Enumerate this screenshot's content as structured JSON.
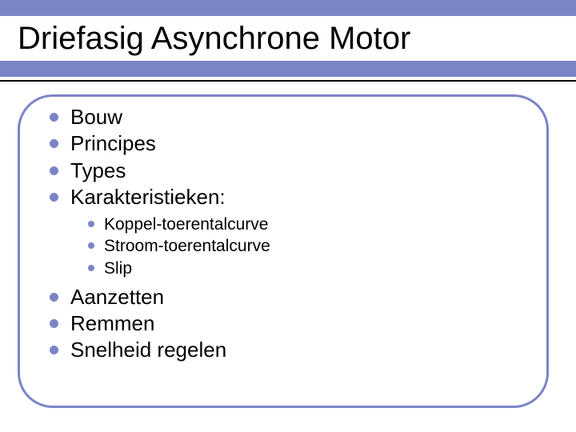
{
  "colors": {
    "accent": "#7b84c6",
    "text": "#000000",
    "background": "#ffffff",
    "underline_thin": "#000000"
  },
  "title": "Driefasig Asynchrone Motor",
  "bullets_top": [
    "Bouw",
    "Principes",
    "Types",
    "Karakteristieken:"
  ],
  "sub_bullets": [
    "Koppel-toerentalcurve",
    "Stroom-toerentalcurve",
    "Slip"
  ],
  "bullets_bottom": [
    "Aanzetten",
    "Remmen",
    "Snelheid regelen"
  ]
}
